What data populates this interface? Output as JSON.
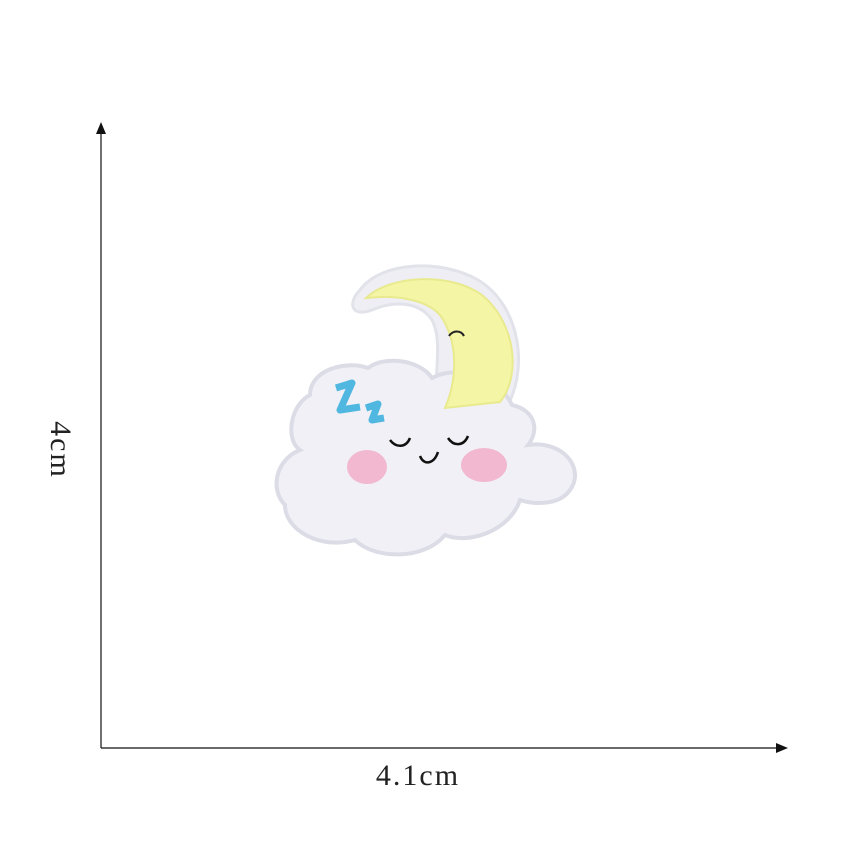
{
  "dimensions": {
    "height_label": "4cm",
    "width_label": "4.1cm"
  }
}
